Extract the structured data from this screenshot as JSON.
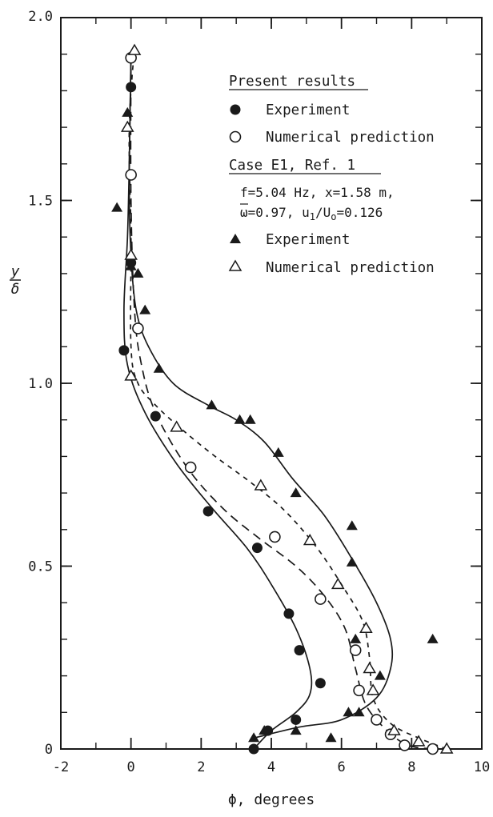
{
  "chart_data": {
    "type": "scatter",
    "xlabel": "ϕ, degrees",
    "ylabel_num": "y",
    "ylabel_den": "δ",
    "xlim": [
      -2,
      10
    ],
    "ylim": [
      0,
      2.0
    ],
    "x_ticks": [
      -2,
      0,
      2,
      4,
      6,
      8,
      10
    ],
    "x_tick_labels": [
      "-2",
      "0",
      "2",
      "4",
      "6",
      "8",
      "10"
    ],
    "y_ticks": [
      0,
      0.5,
      1.0,
      1.5,
      2.0
    ],
    "y_tick_labels": [
      "0",
      "0.5",
      "1.0",
      "1.5",
      "2.0"
    ],
    "x_minor_step": 1,
    "y_minor_step": 0.1,
    "legend": {
      "group1_title": "Present results",
      "group1_exp": "Experiment",
      "group1_num": "Numerical prediction",
      "group2_title": "Case E1, Ref. 1",
      "params_line1": "f=5.04 Hz, x=1.58 m,",
      "params_omega": "ω",
      "params_line2a": "=0.97, u",
      "params_sub1": "1",
      "params_slash": "/U",
      "params_sub2": "o",
      "params_val": "=0.126",
      "group2_exp": "Experiment",
      "group2_num": "Numerical prediction"
    },
    "series": [
      {
        "marker": "filled-circle",
        "points": [
          [
            3.5,
            0.0
          ],
          [
            3.9,
            0.05
          ],
          [
            4.7,
            0.08
          ],
          [
            5.4,
            0.18
          ],
          [
            4.8,
            0.27
          ],
          [
            4.5,
            0.37
          ],
          [
            3.6,
            0.55
          ],
          [
            2.2,
            0.65
          ],
          [
            0.7,
            0.91
          ],
          [
            -0.2,
            1.09
          ],
          [
            0.0,
            1.33
          ],
          [
            0.0,
            1.81
          ]
        ]
      },
      {
        "marker": "open-circle",
        "points": [
          [
            8.6,
            0.0
          ],
          [
            7.8,
            0.01
          ],
          [
            7.4,
            0.04
          ],
          [
            7.0,
            0.08
          ],
          [
            6.5,
            0.16
          ],
          [
            6.4,
            0.27
          ],
          [
            5.4,
            0.41
          ],
          [
            4.1,
            0.58
          ],
          [
            1.7,
            0.77
          ],
          [
            0.2,
            1.15
          ],
          [
            0.0,
            1.57
          ],
          [
            0.0,
            1.89
          ]
        ]
      },
      {
        "marker": "filled-triangle",
        "points": [
          [
            3.5,
            0.03
          ],
          [
            3.8,
            0.05
          ],
          [
            4.7,
            0.05
          ],
          [
            5.7,
            0.03
          ],
          [
            6.2,
            0.1
          ],
          [
            6.5,
            0.1
          ],
          [
            7.1,
            0.2
          ],
          [
            6.4,
            0.3
          ],
          [
            8.6,
            0.3
          ],
          [
            6.3,
            0.51
          ],
          [
            6.3,
            0.61
          ],
          [
            4.7,
            0.7
          ],
          [
            4.2,
            0.81
          ],
          [
            3.1,
            0.9
          ],
          [
            3.4,
            0.9
          ],
          [
            2.3,
            0.94
          ],
          [
            0.8,
            1.04
          ],
          [
            0.4,
            1.2
          ],
          [
            0.2,
            1.3
          ],
          [
            0.0,
            1.32
          ],
          [
            -0.4,
            1.48
          ],
          [
            -0.1,
            1.74
          ]
        ]
      },
      {
        "marker": "open-triangle",
        "points": [
          [
            9.0,
            0.0
          ],
          [
            8.2,
            0.02
          ],
          [
            7.5,
            0.05
          ],
          [
            6.9,
            0.16
          ],
          [
            6.8,
            0.22
          ],
          [
            6.7,
            0.33
          ],
          [
            5.9,
            0.45
          ],
          [
            5.1,
            0.57
          ],
          [
            3.7,
            0.72
          ],
          [
            1.3,
            0.88
          ],
          [
            0.0,
            1.02
          ],
          [
            0.0,
            1.35
          ],
          [
            -0.1,
            1.7
          ],
          [
            0.1,
            1.91
          ]
        ]
      }
    ],
    "curves": [
      {
        "style": "solid",
        "points": [
          [
            3.5,
            0.0
          ],
          [
            4.0,
            0.05
          ],
          [
            4.7,
            0.1
          ],
          [
            5.1,
            0.15
          ],
          [
            5.1,
            0.22
          ],
          [
            4.7,
            0.33
          ],
          [
            4.0,
            0.45
          ],
          [
            3.3,
            0.55
          ],
          [
            2.3,
            0.66
          ],
          [
            1.3,
            0.78
          ],
          [
            0.4,
            0.92
          ],
          [
            -0.1,
            1.05
          ],
          [
            -0.2,
            1.2
          ],
          [
            -0.1,
            1.4
          ],
          [
            -0.05,
            1.6
          ],
          [
            0.0,
            1.9
          ]
        ]
      },
      {
        "style": "long-dash",
        "points": [
          [
            8.6,
            0.0
          ],
          [
            7.9,
            0.01
          ],
          [
            7.3,
            0.05
          ],
          [
            6.7,
            0.12
          ],
          [
            6.4,
            0.22
          ],
          [
            6.1,
            0.33
          ],
          [
            5.5,
            0.42
          ],
          [
            4.7,
            0.5
          ],
          [
            3.6,
            0.58
          ],
          [
            2.6,
            0.66
          ],
          [
            1.6,
            0.77
          ],
          [
            0.7,
            0.92
          ],
          [
            0.3,
            1.05
          ],
          [
            0.1,
            1.2
          ],
          [
            0.0,
            1.5
          ],
          [
            0.0,
            1.9
          ]
        ]
      },
      {
        "style": "solid",
        "points": [
          [
            3.5,
            0.03
          ],
          [
            4.8,
            0.06
          ],
          [
            6.0,
            0.08
          ],
          [
            7.0,
            0.14
          ],
          [
            7.4,
            0.22
          ],
          [
            7.4,
            0.3
          ],
          [
            7.0,
            0.4
          ],
          [
            6.3,
            0.52
          ],
          [
            5.5,
            0.64
          ],
          [
            4.6,
            0.74
          ],
          [
            3.8,
            0.84
          ],
          [
            3.0,
            0.9
          ],
          [
            2.2,
            0.94
          ],
          [
            1.2,
            1.0
          ],
          [
            0.5,
            1.1
          ],
          [
            0.15,
            1.2
          ],
          [
            0.0,
            1.35
          ],
          [
            -0.05,
            1.55
          ],
          [
            0.0,
            1.9
          ]
        ]
      },
      {
        "style": "short-dash",
        "points": [
          [
            9.0,
            0.0
          ],
          [
            8.2,
            0.03
          ],
          [
            7.4,
            0.07
          ],
          [
            6.9,
            0.14
          ],
          [
            6.8,
            0.25
          ],
          [
            6.6,
            0.35
          ],
          [
            6.0,
            0.45
          ],
          [
            5.3,
            0.55
          ],
          [
            4.4,
            0.65
          ],
          [
            3.4,
            0.73
          ],
          [
            2.4,
            0.8
          ],
          [
            1.5,
            0.87
          ],
          [
            0.7,
            0.94
          ],
          [
            0.2,
            1.0
          ],
          [
            0.0,
            1.1
          ],
          [
            0.0,
            1.4
          ],
          [
            -0.05,
            1.7
          ],
          [
            0.1,
            1.92
          ]
        ]
      }
    ]
  }
}
